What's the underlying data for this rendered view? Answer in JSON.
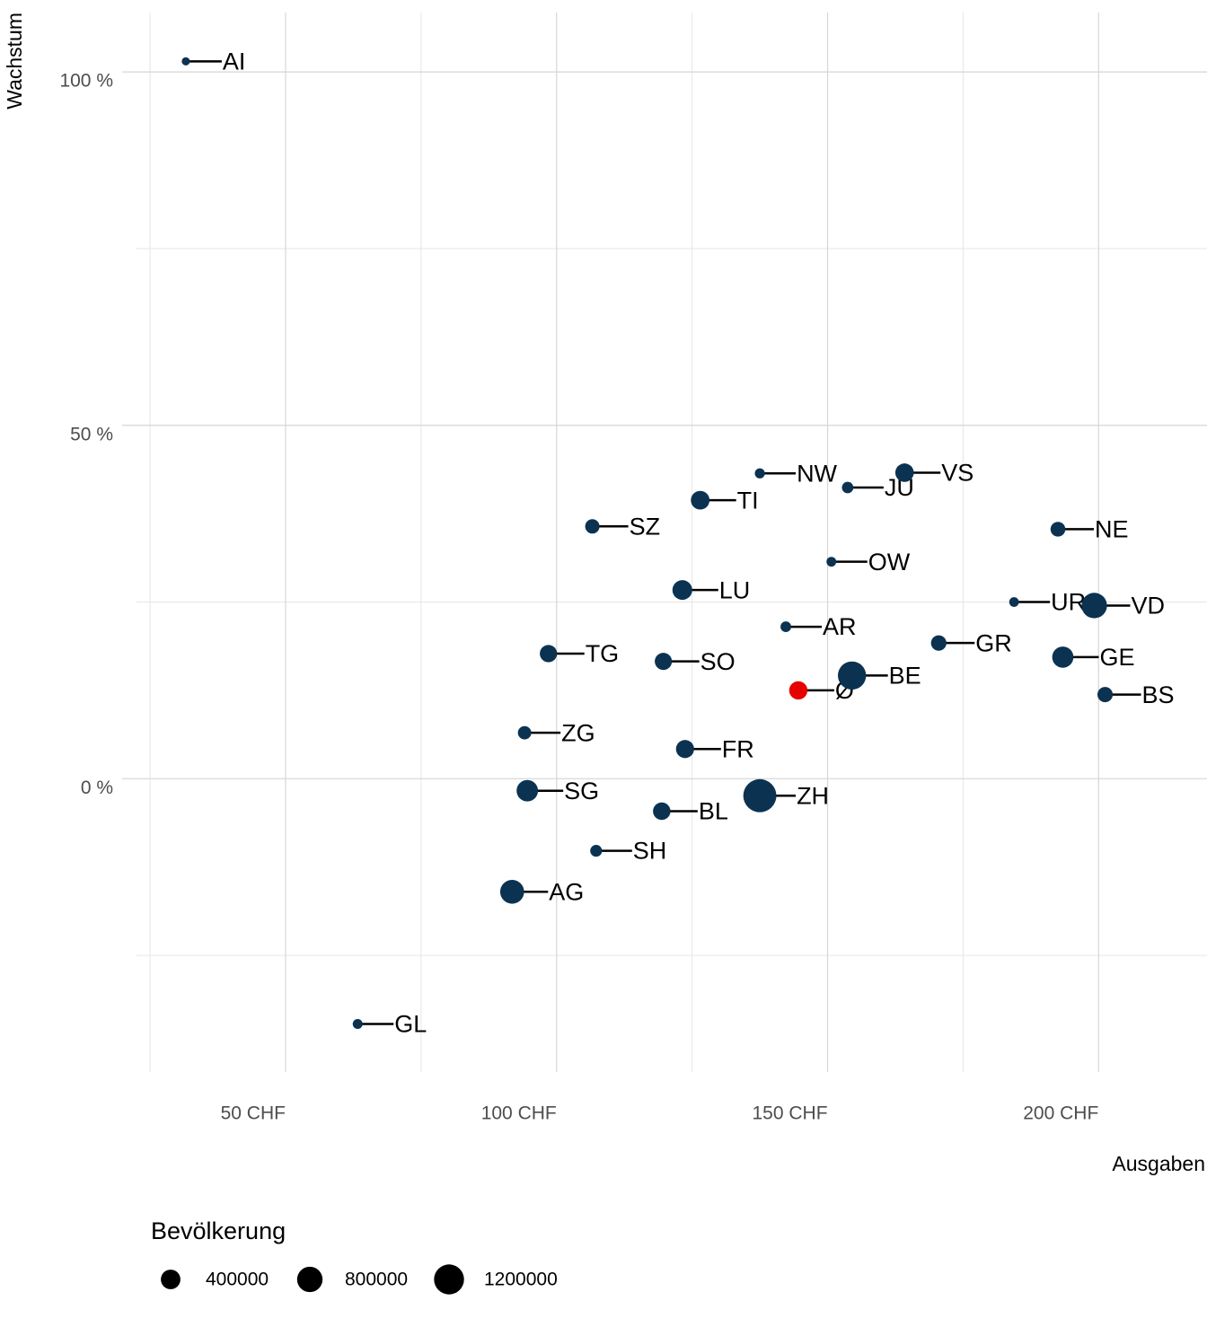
{
  "chart_data": {
    "type": "bubble",
    "x_label": "Ausgaben",
    "y_label": "Wachstum",
    "labels": [
      "AI",
      "GL",
      "AG",
      "SH",
      "BL",
      "SG",
      "ZH",
      "ZG",
      "FR",
      "TG",
      "SO",
      "Ø",
      "BE",
      "AR",
      "LU",
      "SZ",
      "TI",
      "NW",
      "JU",
      "VS",
      "OW",
      "NE",
      "UR",
      "VD",
      "GR",
      "GE",
      "BS"
    ],
    "x": [
      31.6,
      63.3,
      91.8,
      107.3,
      119.4,
      94.6,
      137.5,
      94.1,
      123.7,
      98.5,
      119.7,
      144.6,
      154.5,
      142.3,
      123.2,
      106.6,
      126.5,
      137.5,
      153.7,
      164.2,
      150.7,
      192.5,
      184.4,
      199.2,
      170.5,
      193.4,
      201.2
    ],
    "y": [
      101.5,
      -34.7,
      -16.0,
      -10.2,
      -4.6,
      -1.7,
      -2.4,
      6.5,
      4.2,
      17.7,
      16.6,
      12.5,
      14.6,
      21.5,
      26.7,
      35.7,
      39.4,
      43.2,
      41.2,
      43.3,
      30.7,
      35.3,
      25.0,
      24.5,
      19.2,
      17.2,
      11.9
    ],
    "size": [
      16000,
      40000,
      680000,
      82000,
      290000,
      510000,
      1520000,
      127000,
      320000,
      280000,
      275000,
      330000,
      1030000,
      55000,
      410000,
      160000,
      350000,
      43000,
      73000,
      340000,
      38000,
      176000,
      36000,
      800000,
      200000,
      500000,
      195000
    ],
    "colors": [
      "#0b3251",
      "#0b3251",
      "#0b3251",
      "#0b3251",
      "#0b3251",
      "#0b3251",
      "#0b3251",
      "#0b3251",
      "#0b3251",
      "#0b3251",
      "#0b3251",
      "#e60000",
      "#0b3251",
      "#0b3251",
      "#0b3251",
      "#0b3251",
      "#0b3251",
      "#0b3251",
      "#0b3251",
      "#0b3251",
      "#0b3251",
      "#0b3251",
      "#0b3251",
      "#0b3251",
      "#0b3251",
      "#0b3251",
      "#0b3251"
    ],
    "xlim": [
      22.5,
      220
    ],
    "ylim": [
      -41.5,
      108.4
    ],
    "xticks": [
      {
        "value": 50,
        "label": "50 CHF"
      },
      {
        "value": 100,
        "label": "100 CHF"
      },
      {
        "value": 150,
        "label": "150 CHF"
      },
      {
        "value": 200,
        "label": "200 CHF"
      }
    ],
    "xminor": [
      25,
      75,
      125,
      175
    ],
    "yticks": [
      {
        "value": 0,
        "label": "0 %"
      },
      {
        "value": 50,
        "label": "50 %"
      },
      {
        "value": 100,
        "label": "100 %"
      }
    ],
    "yminor": [
      -25,
      25,
      75
    ],
    "grid": true,
    "size_legend_title": "Bevölkerung",
    "size_legend": [
      400000,
      800000,
      1200000
    ]
  }
}
